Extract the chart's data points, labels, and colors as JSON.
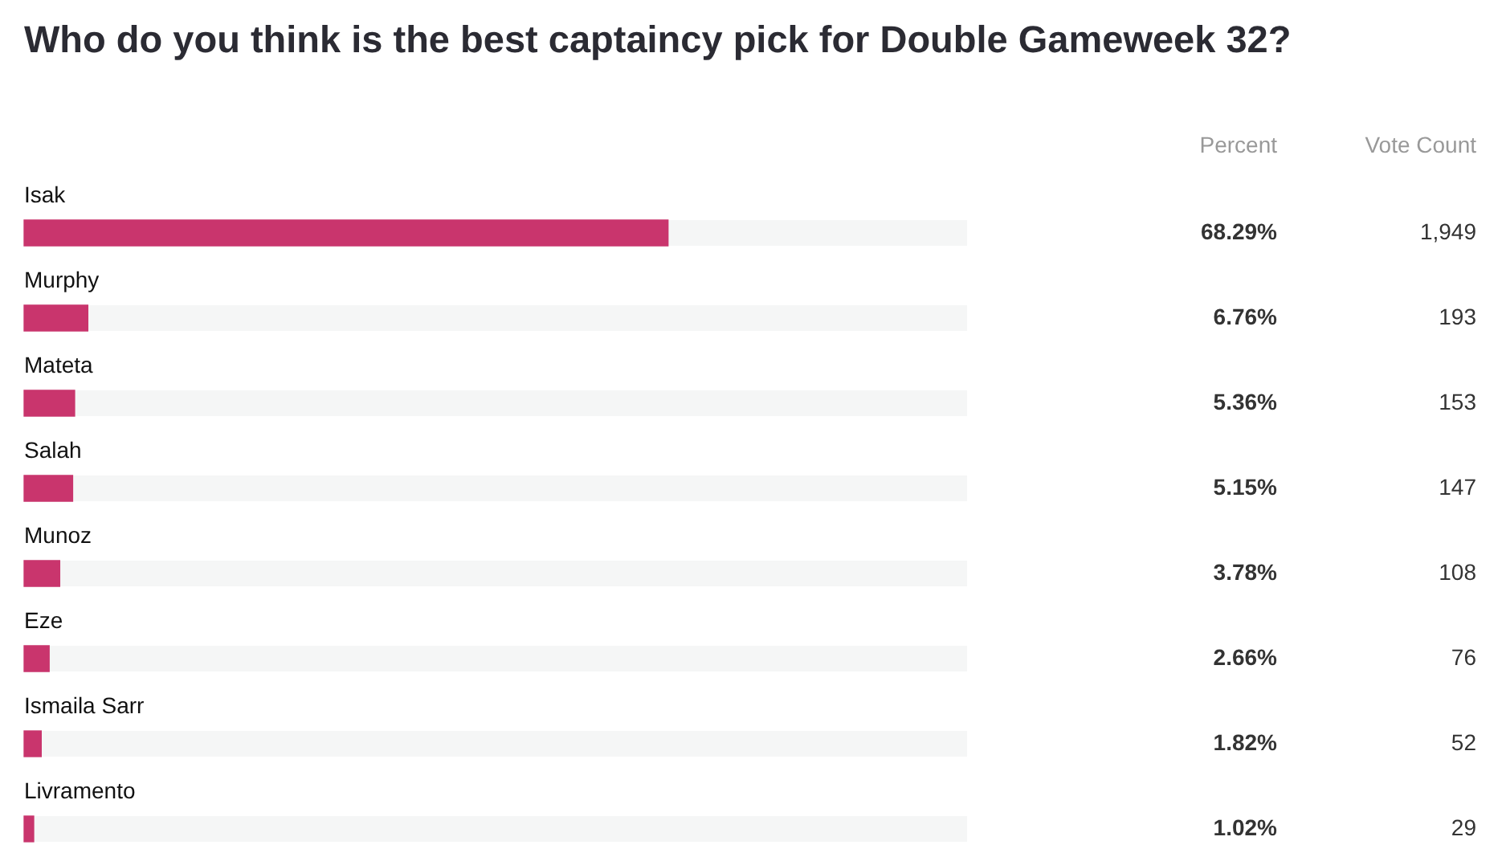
{
  "chart_data": {
    "type": "bar",
    "orientation": "horizontal",
    "title": "Who do you think is the best captaincy pick for Double Gameweek 32?",
    "categories": [
      "Isak",
      "Murphy",
      "Mateta",
      "Salah",
      "Munoz",
      "Eze",
      "Ismaila Sarr",
      "Livramento"
    ],
    "series": [
      {
        "name": "Percent",
        "color": "#c9356d",
        "values": [
          68.29,
          6.76,
          5.36,
          5.15,
          3.78,
          2.66,
          1.82,
          1.02
        ],
        "value_labels": [
          "68.29%",
          "6.76%",
          "5.36%",
          "5.15%",
          "3.78%",
          "2.66%",
          "1.82%",
          "1.02%"
        ]
      }
    ],
    "xlim": [
      0,
      100
    ],
    "tick_labels": "y",
    "annotations": [
      "Vote Count",
      "1,949",
      "193",
      "153",
      "147",
      "108",
      "76",
      "52",
      "29"
    ]
  }
}
